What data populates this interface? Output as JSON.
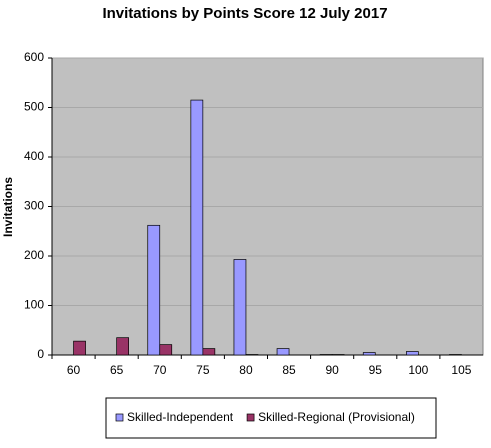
{
  "chart_data": {
    "type": "bar",
    "title": "Invitations by Points Score 12 July 2017",
    "y_label": "Invitations",
    "categories": [
      "60",
      "65",
      "70",
      "75",
      "80",
      "85",
      "90",
      "95",
      "100",
      "105"
    ],
    "series": [
      {
        "name": "Skilled-Independent",
        "color": "#9999ff",
        "values": [
          0,
          0,
          262,
          515,
          193,
          13,
          1,
          5,
          7,
          1
        ]
      },
      {
        "name": "Skilled-Regional (Provisional)",
        "color": "#993366",
        "values": [
          28,
          35,
          21,
          13,
          1,
          0,
          1,
          0,
          0,
          0
        ]
      }
    ],
    "ylim": [
      0,
      600
    ],
    "yticks": [
      0,
      100,
      200,
      300,
      400,
      500,
      600
    ],
    "grid": true,
    "legend": "bottom"
  }
}
